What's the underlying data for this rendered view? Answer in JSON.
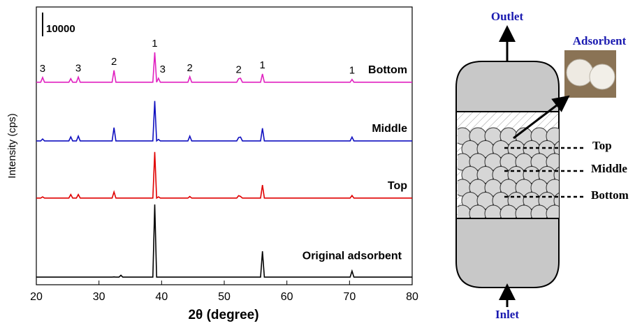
{
  "chart_data": {
    "type": "line",
    "xlabel": "2θ (degree)",
    "ylabel": "Intensity (cps)",
    "xlim": [
      20,
      80
    ],
    "xticks": [
      20,
      30,
      40,
      50,
      60,
      70,
      80
    ],
    "ylim": [
      0,
      117000
    ],
    "scale_bar": 10000,
    "x": [
      20,
      20.7,
      21,
      21.3,
      25.2,
      25.5,
      25.8,
      26.4,
      26.7,
      27,
      32.1,
      32.4,
      32.7,
      33.2,
      33.5,
      33.8,
      38.6,
      38.9,
      39.2,
      39.5,
      39.8,
      44.2,
      44.5,
      44.8,
      52,
      52.3,
      52.6,
      52.9,
      55.8,
      56.1,
      56.4,
      70.1,
      70.4,
      70.7,
      80
    ],
    "series": [
      {
        "name": "Bottom",
        "color": "#e020c0",
        "values": [
          85300,
          85300,
          87300,
          85300,
          85300,
          86800,
          85300,
          85300,
          87500,
          85300,
          85300,
          90300,
          85300,
          85300,
          85300,
          85300,
          85300,
          97900,
          85300,
          87000,
          85300,
          85300,
          87600,
          85300,
          85300,
          86800,
          87000,
          85300,
          85300,
          88800,
          85300,
          85300,
          86500,
          85300,
          85300
        ]
      },
      {
        "name": "Middle",
        "color": "#1010c0",
        "values": [
          60600,
          60600,
          61400,
          60600,
          60600,
          62300,
          60600,
          60600,
          62600,
          60600,
          60600,
          66200,
          60600,
          60600,
          60600,
          60600,
          60600,
          77400,
          60600,
          61200,
          60600,
          60600,
          62600,
          60600,
          60600,
          62000,
          62200,
          60600,
          60600,
          65900,
          60600,
          60600,
          62200,
          60600,
          60600
        ]
      },
      {
        "name": "Top",
        "color": "#e00000",
        "values": [
          36500,
          36500,
          37000,
          36500,
          36500,
          38000,
          36500,
          36500,
          38000,
          36500,
          36500,
          39100,
          36500,
          36500,
          36500,
          36500,
          36500,
          55900,
          36500,
          37000,
          36500,
          36500,
          37200,
          36500,
          36500,
          37500,
          37200,
          36500,
          36500,
          42000,
          36500,
          36500,
          37600,
          36500,
          36500
        ]
      },
      {
        "name": "Original adsorbent",
        "color": "#000000",
        "values": [
          3200,
          3200,
          3200,
          3200,
          3200,
          3200,
          3200,
          3200,
          3200,
          3200,
          3200,
          3300,
          3200,
          3200,
          4000,
          3200,
          3200,
          33800,
          3200,
          3200,
          3200,
          3200,
          3200,
          3200,
          3200,
          3200,
          3200,
          3200,
          3200,
          14100,
          3200,
          3200,
          5800,
          3200,
          3200
        ]
      }
    ],
    "peak_labels": [
      {
        "label": "3",
        "x": 21
      },
      {
        "label": "3",
        "x": 26.7
      },
      {
        "label": "2",
        "x": 32.4
      },
      {
        "label": "1",
        "x": 38.9
      },
      {
        "label": "3",
        "x": 39.5
      },
      {
        "label": "2",
        "x": 44.5
      },
      {
        "label": "2",
        "x": 52.3
      },
      {
        "label": "1",
        "x": 56.1
      },
      {
        "label": "1",
        "x": 70.4
      }
    ]
  },
  "diagram": {
    "outlet": "Outlet",
    "inlet": "Inlet",
    "adsorbent": "Adsorbent",
    "layers": [
      "Top",
      "Middle",
      "Bottom"
    ]
  }
}
